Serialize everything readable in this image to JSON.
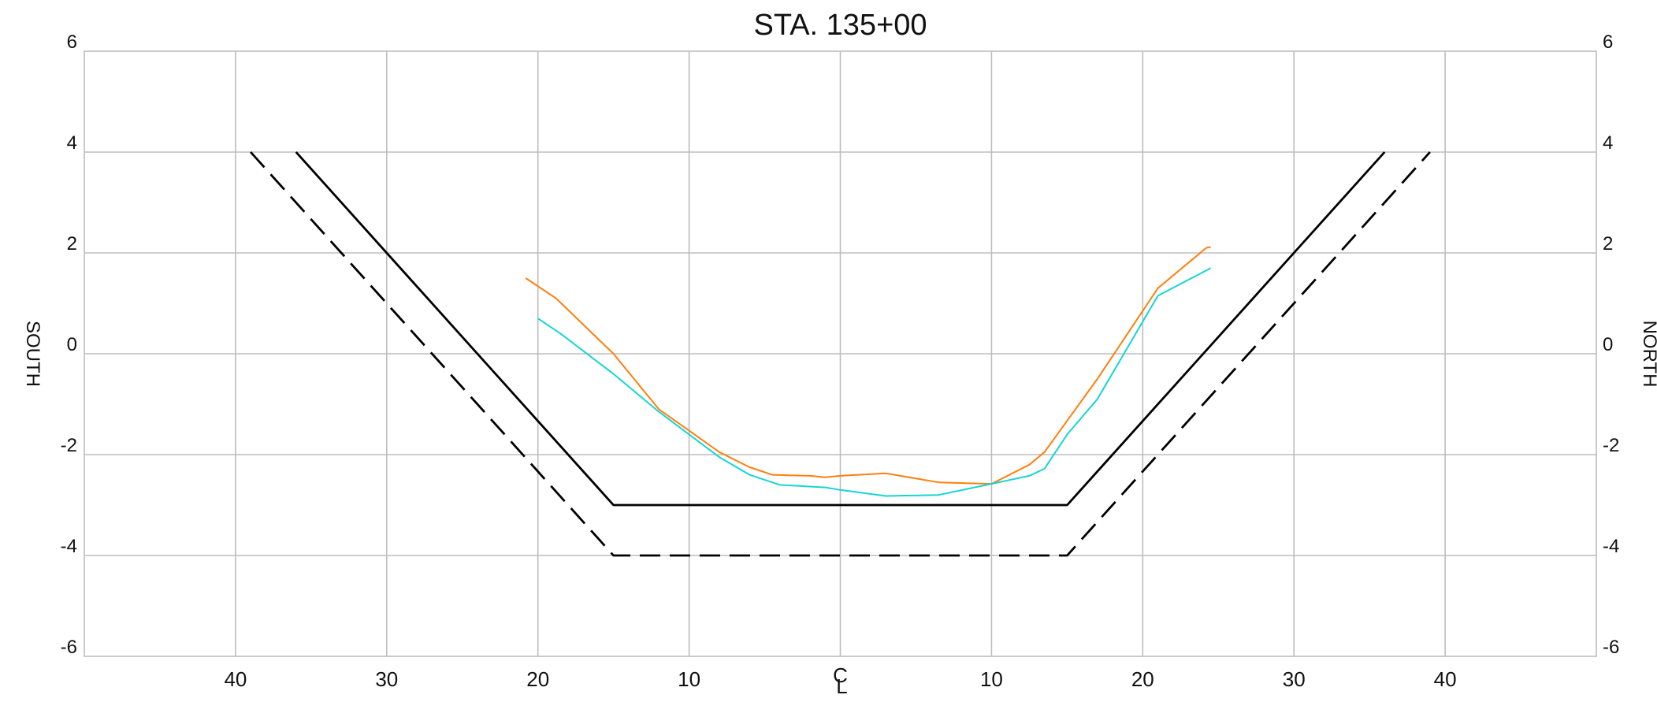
{
  "chart_data": {
    "type": "line",
    "title": "STA. 135+00",
    "left_label": "SOUTH",
    "right_label": "NORTH",
    "centerline_label": "C",
    "centerline_label_lower": "L",
    "xlim": [
      -50,
      50
    ],
    "ylim": [
      -6,
      6
    ],
    "x_ticks": [
      -40,
      -30,
      -20,
      -10,
      10,
      20,
      30,
      40
    ],
    "x_tick_labels": [
      "40",
      "30",
      "20",
      "10",
      "10",
      "20",
      "30",
      "40"
    ],
    "y_ticks": [
      -6,
      -4,
      -2,
      0,
      2,
      4,
      6
    ],
    "y_tick_labels": [
      "-6",
      "-4",
      "-2",
      "0",
      "2",
      "4",
      "6"
    ],
    "y_gridlines": [
      -4,
      -2,
      0,
      2,
      4
    ],
    "x_gridlines": [
      -40,
      -30,
      -20,
      -10,
      0,
      10,
      20,
      30,
      40
    ],
    "grid": true,
    "series": [
      {
        "color": "#000000",
        "dash": "solid",
        "points": [
          [
            -36,
            4
          ],
          [
            -15,
            -3
          ],
          [
            15,
            -3
          ],
          [
            36,
            4
          ]
        ]
      },
      {
        "color": "#000000",
        "dash": "dashed",
        "points": [
          [
            -39,
            4
          ],
          [
            -15,
            -4
          ],
          [
            15,
            -4
          ],
          [
            39,
            4
          ]
        ]
      },
      {
        "color": "#ff7f0e",
        "dash": "solid",
        "points": [
          [
            -20.8,
            1.5
          ],
          [
            -18.8,
            1.1
          ],
          [
            -15,
            0.0
          ],
          [
            -12,
            -1.1
          ],
          [
            -8,
            -1.95
          ],
          [
            -6,
            -2.25
          ],
          [
            -4.5,
            -2.4
          ],
          [
            -2,
            -2.42
          ],
          [
            -1,
            -2.45
          ],
          [
            0,
            -2.42
          ],
          [
            3,
            -2.37
          ],
          [
            6.5,
            -2.55
          ],
          [
            10,
            -2.58
          ],
          [
            12.5,
            -2.2
          ],
          [
            13.5,
            -1.95
          ],
          [
            17,
            -0.5
          ],
          [
            21,
            1.3
          ],
          [
            24.2,
            2.1
          ],
          [
            24.5,
            2.12
          ]
        ]
      },
      {
        "color": "#17d4d4",
        "dash": "solid",
        "points": [
          [
            -20,
            0.7
          ],
          [
            -18.5,
            0.4
          ],
          [
            -15,
            -0.4
          ],
          [
            -12,
            -1.15
          ],
          [
            -8,
            -2.05
          ],
          [
            -6,
            -2.4
          ],
          [
            -4,
            -2.6
          ],
          [
            -1,
            -2.65
          ],
          [
            0,
            -2.7
          ],
          [
            3,
            -2.82
          ],
          [
            6.5,
            -2.8
          ],
          [
            10,
            -2.58
          ],
          [
            12.5,
            -2.42
          ],
          [
            13.5,
            -2.28
          ],
          [
            15,
            -1.6
          ],
          [
            17,
            -0.9
          ],
          [
            21,
            1.15
          ],
          [
            24.5,
            1.7
          ]
        ]
      }
    ]
  }
}
